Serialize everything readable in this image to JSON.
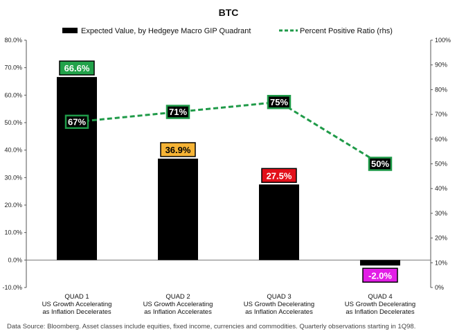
{
  "chart_data": {
    "type": "bar",
    "title": "BTC",
    "categories": [
      [
        "QUAD 1",
        "US Growth Accelerating",
        "as Inflation Decelerates"
      ],
      [
        "QUAD 2",
        "US Growth Accelerating",
        "as Inflation Accelerates"
      ],
      [
        "QUAD 3",
        "US Growth Decelerating",
        "as Inflation Accelerates"
      ],
      [
        "QUAD 4",
        "US Growth Decelerating",
        "as Inflation Decelerates"
      ]
    ],
    "series": [
      {
        "name": "Expected Value, by Hedgeye Macro GIP Quadrant",
        "type": "bar",
        "axis": "left",
        "color": "#000000",
        "values": [
          66.6,
          36.9,
          27.5,
          -2.0
        ],
        "labels": [
          "66.6%",
          "36.9%",
          "27.5%",
          "-2.0%"
        ],
        "label_backgrounds": [
          "#22a24a",
          "#f5b335",
          "#e3101a",
          "#e21ee6"
        ],
        "label_text_colors": [
          "#ffffff",
          "#000000",
          "#ffffff",
          "#ffffff"
        ]
      },
      {
        "name": "Percent Positive Ratio (rhs)",
        "type": "line",
        "axis": "right",
        "style": "dashed",
        "color": "#1f9a48",
        "values": [
          67,
          71,
          75,
          50
        ],
        "labels": [
          "67%",
          "71%",
          "75%",
          "50%"
        ]
      }
    ],
    "y_left": {
      "ylim": [
        -10,
        80
      ],
      "ticks": [
        80,
        70,
        60,
        50,
        40,
        30,
        20,
        10,
        0,
        -10
      ],
      "tick_labels": [
        "80.0%",
        "70.0%",
        "60.0%",
        "50.0%",
        "40.0%",
        "30.0%",
        "20.0%",
        "10.0%",
        "0.0%",
        "-10.0%"
      ]
    },
    "y_right": {
      "ylim": [
        0,
        100
      ],
      "ticks": [
        100,
        90,
        80,
        70,
        60,
        50,
        40,
        30,
        20,
        10,
        0
      ],
      "tick_labels": [
        "100%",
        "90%",
        "80%",
        "70%",
        "60%",
        "50%",
        "40%",
        "30%",
        "20%",
        "10%",
        "0%"
      ]
    },
    "legend_position": "top",
    "grid": false,
    "footnote": "Data Source: Bloomberg. Asset classes include equities, fixed income, currencies and commodities. Quarterly observations starting in 1Q98."
  }
}
